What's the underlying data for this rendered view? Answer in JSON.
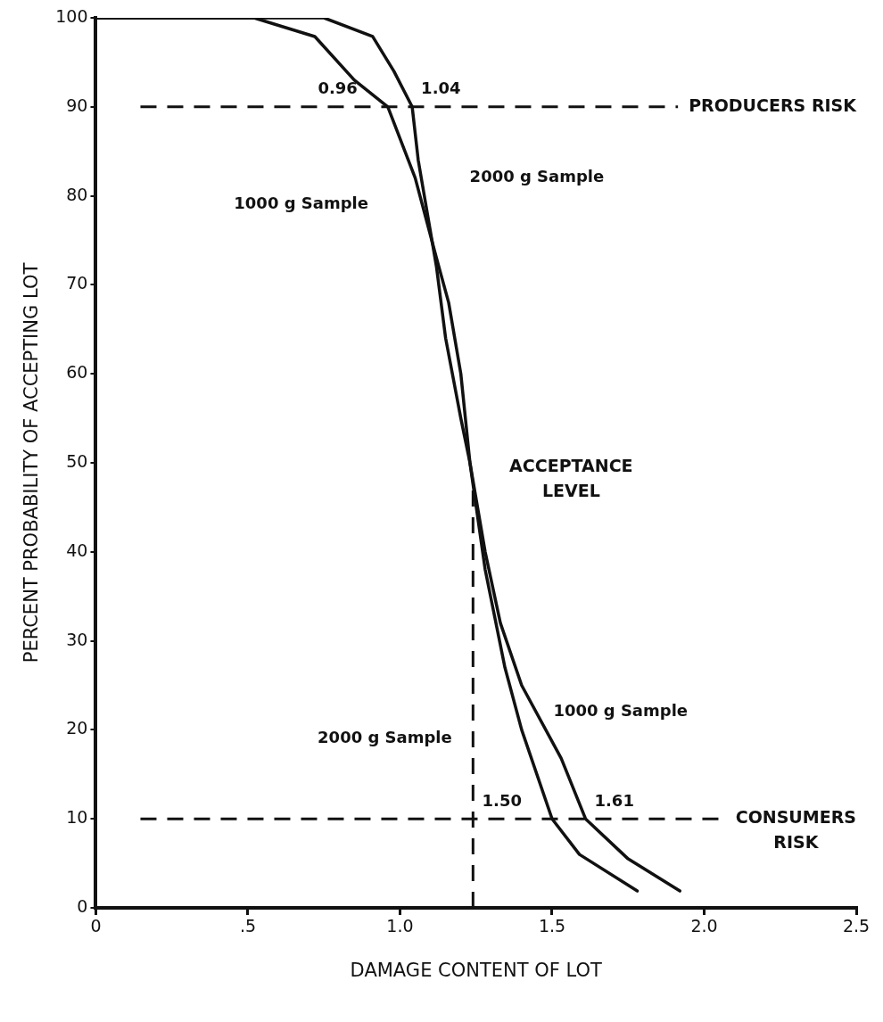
{
  "chart_data": {
    "type": "line",
    "xlabel": "DAMAGE CONTENT OF LOT",
    "ylabel": "PERCENT PROBABILITY OF ACCEPTING LOT",
    "xlim": [
      0,
      2.5
    ],
    "ylim": [
      0,
      100
    ],
    "xticks": [
      0,
      {
        "value": 0.5,
        "label": ".5"
      },
      {
        "value": 1,
        "label": "1.0"
      },
      {
        "value": 1.5,
        "label": "1.5"
      },
      {
        "value": 2,
        "label": "2.0"
      },
      {
        "value": 2.5,
        "label": "2.5"
      }
    ],
    "yticks": [
      0,
      10,
      20,
      30,
      40,
      50,
      60,
      70,
      80,
      90,
      100
    ],
    "grid": false,
    "legend": false,
    "marker": "none",
    "line_style": "solid",
    "series": [
      {
        "color": "#111111",
        "x": [
          0,
          0.52,
          0.72,
          0.85,
          0.96,
          1.05,
          1.12,
          1.16,
          1.2,
          1.23,
          1.28,
          1.33,
          1.4,
          1.53,
          1.61,
          1.75,
          1.92
        ],
        "values": [
          100,
          100,
          97.9,
          93,
          90,
          82,
          73,
          68,
          60,
          50,
          40,
          32,
          25,
          16.8,
          10,
          5.5,
          1.9
        ]
      },
      {
        "color": "#111111",
        "x": [
          0,
          0.52,
          0.75,
          0.91,
          0.98,
          1.04,
          1.06,
          1.12,
          1.15,
          1.2,
          1.23,
          1.28,
          1.345,
          1.4,
          1.5,
          1.59,
          1.78
        ],
        "values": [
          100,
          100,
          100,
          97.9,
          94,
          90,
          84,
          72,
          64,
          55,
          50,
          38,
          27,
          20,
          10,
          6,
          1.9
        ]
      }
    ],
    "ref_lines": [
      {
        "axis": "y",
        "value": 90,
        "label": "PRODUCERS RISK",
        "color": "#111111",
        "line_style": "dashed"
      },
      {
        "axis": "y",
        "value": 10,
        "label": "CONSUMERS\nRISK",
        "color": "#111111",
        "line_style": "dashed"
      },
      {
        "axis": "x",
        "value": 1.24,
        "label": "ACCEPTANCE\nLEVEL",
        "color": "#111111",
        "line_style": "dashed"
      }
    ],
    "annotations": [
      {
        "text": "0.96",
        "x": 0.96,
        "y": 90
      },
      {
        "text": "1.04",
        "x": 1.04,
        "y": 90
      },
      {
        "text": "1.50",
        "x": 1.5,
        "y": 10
      },
      {
        "text": "1.61",
        "x": 1.61,
        "y": 10
      },
      "1000 g Sample",
      "2000 g Sample",
      "2000 g Sample",
      "1000 g Sample"
    ]
  }
}
